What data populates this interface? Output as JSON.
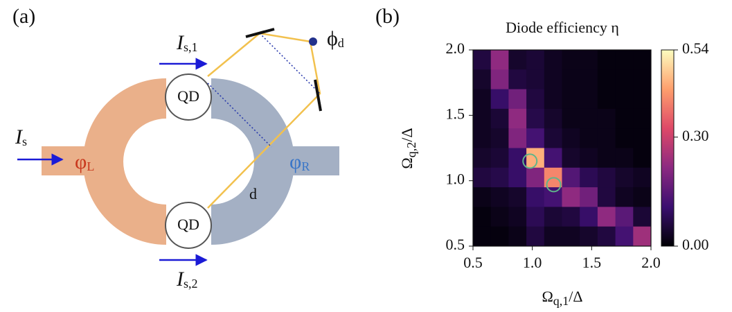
{
  "diagram": {
    "panel_label": "(a)",
    "current_top": {
      "main": "I",
      "sub": "s,1"
    },
    "current_left": {
      "main": "I",
      "sub": "s"
    },
    "current_bottom": {
      "main": "I",
      "sub": "s,2"
    },
    "qd_top": "QD",
    "qd_bottom": "QD",
    "phase_left": {
      "main": "φ",
      "sub": "L"
    },
    "phase_right": {
      "main": "φ",
      "sub": "R"
    },
    "phase_d": {
      "main": "ϕ",
      "sub": "d"
    },
    "distance": "d"
  },
  "chart_data": {
    "type": "heatmap",
    "panel_label": "(b)",
    "title": "Diode efficiency η",
    "xlabel": {
      "main": "Ω",
      "sub": "q,1",
      "rest": "/Δ"
    },
    "ylabel": {
      "main": "Ω",
      "sub": "q,2",
      "rest": "/Δ"
    },
    "xlim": [
      0.5,
      2.0
    ],
    "ylim": [
      0.5,
      2.0
    ],
    "xticks": [
      0.5,
      {
        "value": 1.0,
        "label": "1.0"
      },
      1.5,
      {
        "value": 2.0,
        "label": "2.0"
      }
    ],
    "yticks": [
      0.5,
      {
        "value": 1.0,
        "label": "1.0"
      },
      1.5,
      {
        "value": 2.0,
        "label": "2.0"
      }
    ],
    "x": [
      0.575,
      0.725,
      0.875,
      1.025,
      1.175,
      1.325,
      1.475,
      1.625,
      1.775,
      1.925
    ],
    "y": [
      1.925,
      1.775,
      1.625,
      1.475,
      1.325,
      1.175,
      1.025,
      0.875,
      0.725,
      0.575
    ],
    "z": [
      [
        0.06,
        0.22,
        0.04,
        0.05,
        0.03,
        0.02,
        0.02,
        0.01,
        0.01,
        0.01
      ],
      [
        0.04,
        0.2,
        0.06,
        0.05,
        0.03,
        0.02,
        0.02,
        0.01,
        0.01,
        0.01
      ],
      [
        0.03,
        0.1,
        0.18,
        0.06,
        0.03,
        0.02,
        0.02,
        0.01,
        0.01,
        0.01
      ],
      [
        0.03,
        0.05,
        0.22,
        0.07,
        0.04,
        0.02,
        0.02,
        0.02,
        0.01,
        0.01
      ],
      [
        0.03,
        0.04,
        0.2,
        0.12,
        0.05,
        0.03,
        0.02,
        0.02,
        0.01,
        0.01
      ],
      [
        0.04,
        0.05,
        0.1,
        0.45,
        0.12,
        0.04,
        0.03,
        0.02,
        0.02,
        0.01
      ],
      [
        0.06,
        0.07,
        0.1,
        0.2,
        0.4,
        0.14,
        0.08,
        0.06,
        0.04,
        0.03
      ],
      [
        0.02,
        0.03,
        0.04,
        0.1,
        0.12,
        0.22,
        0.18,
        0.06,
        0.03,
        0.02
      ],
      [
        0.01,
        0.02,
        0.03,
        0.08,
        0.05,
        0.06,
        0.1,
        0.22,
        0.15,
        0.05
      ],
      [
        0.01,
        0.01,
        0.02,
        0.06,
        0.03,
        0.03,
        0.04,
        0.06,
        0.12,
        0.24
      ]
    ],
    "colormap": [
      "#000004",
      "#3b0f70",
      "#8c2981",
      "#de4968",
      "#fe9f6d",
      "#fcfdbf"
    ],
    "colorbar": {
      "lim": [
        0,
        0.54
      ],
      "ticks": [
        {
          "value": 0,
          "label": "0.00"
        },
        {
          "value": 0.3,
          "label": "0.30"
        },
        0.54
      ]
    },
    "markers": {
      "x": [
        0.98,
        1.18
      ],
      "y": [
        1.15,
        0.97
      ],
      "color": "#5fb58a"
    }
  }
}
